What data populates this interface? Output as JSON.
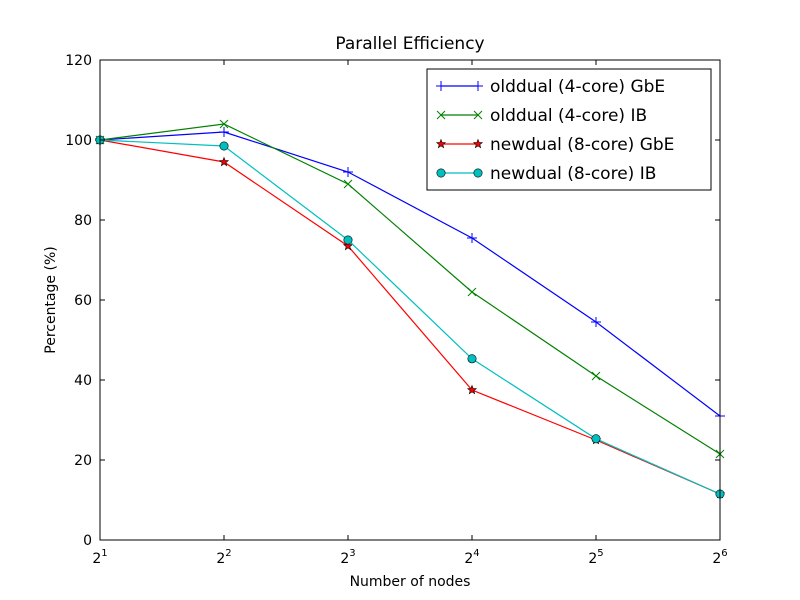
{
  "chart_data": {
    "type": "line",
    "title": "Parallel Efficiency",
    "xlabel": "Number of nodes",
    "ylabel": "Percentage (%)",
    "x_scale": "log2",
    "x": [
      2,
      4,
      8,
      16,
      32,
      64
    ],
    "x_ticks": [
      {
        "base": "2",
        "exp": "1"
      },
      {
        "base": "2",
        "exp": "2"
      },
      {
        "base": "2",
        "exp": "3"
      },
      {
        "base": "2",
        "exp": "4"
      },
      {
        "base": "2",
        "exp": "5"
      },
      {
        "base": "2",
        "exp": "6"
      }
    ],
    "xlim": [
      2,
      64
    ],
    "ylim": [
      0,
      120
    ],
    "y_ticks": [
      "0",
      "20",
      "40",
      "60",
      "80",
      "100",
      "120"
    ],
    "grid": false,
    "legend_position": "top-right",
    "series": [
      {
        "name": "olddual (4-core) GbE",
        "color": "#0000ff",
        "marker": "plus",
        "values": [
          100,
          102,
          92,
          75.5,
          54.5,
          31
        ]
      },
      {
        "name": "olddual (4-core) IB",
        "color": "#008000",
        "marker": "x",
        "values": [
          100,
          104,
          89,
          62,
          41,
          21.5
        ]
      },
      {
        "name": "newdual (8-core) GbE",
        "color": "#ff0000",
        "marker": "star",
        "values": [
          100,
          94.5,
          73.5,
          37.5,
          25,
          11.5
        ]
      },
      {
        "name": "newdual (8-core) IB",
        "color": "#00bfbf",
        "marker": "circle",
        "values": [
          100,
          98.5,
          75,
          45.3,
          25.3,
          11.5
        ]
      }
    ]
  }
}
